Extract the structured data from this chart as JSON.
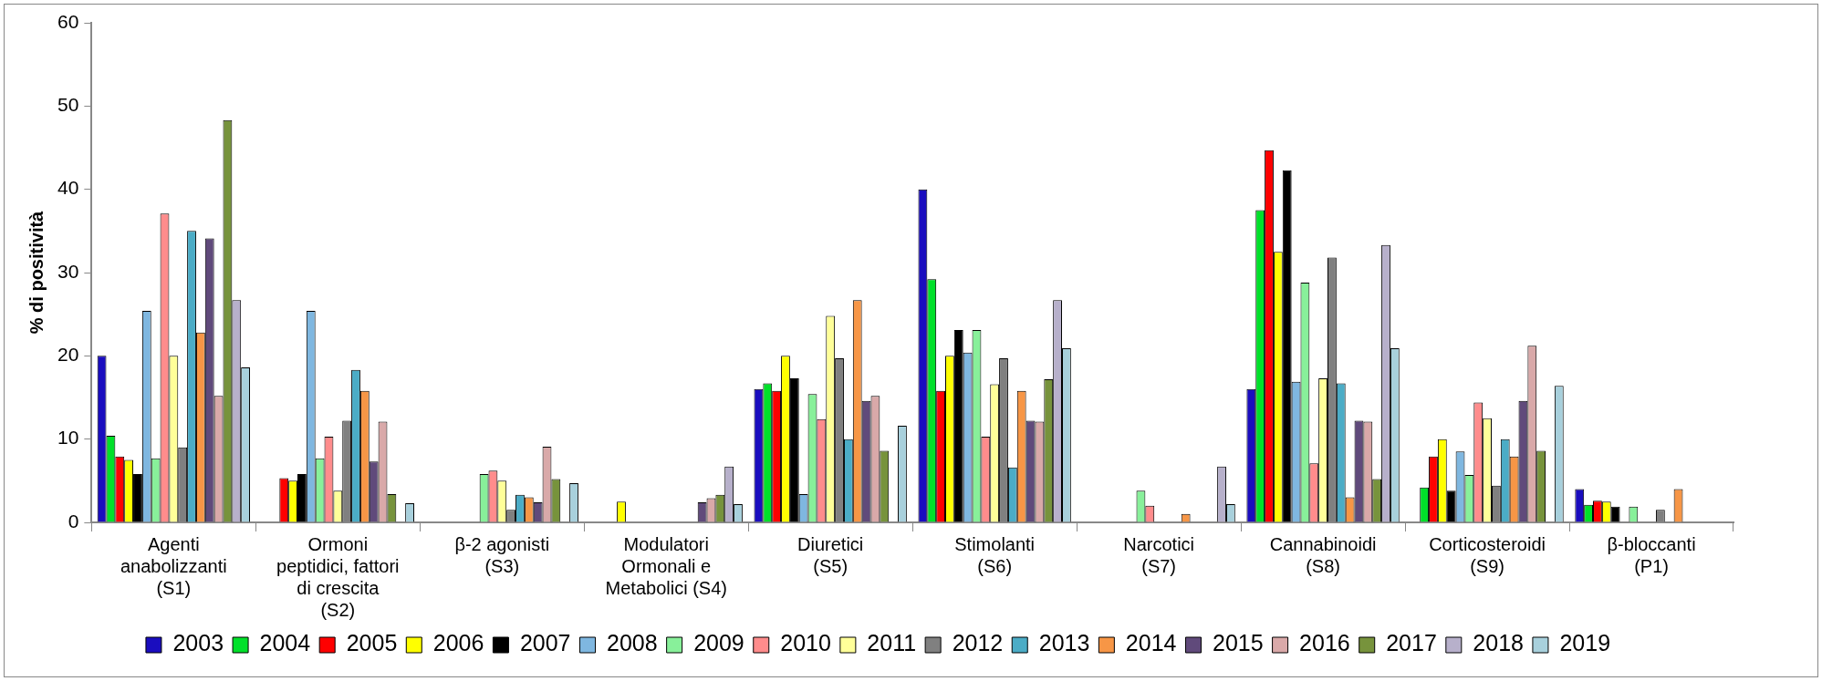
{
  "chart_data": {
    "type": "bar",
    "ylabel": "% di positività",
    "categories": [
      "Agenti\nanabolizzanti\n(S1)",
      "Ormoni\npeptidici, fattori\ndi crescita\n(S2)",
      "β-2 agonisti\n(S3)",
      "Modulatori\nOrmonali e\nMetabolici (S4)",
      "Diuretici\n(S5)",
      "Stimolanti\n(S6)",
      "Narcotici\n(S7)",
      "Cannabinoidi\n(S8)",
      "Corticosteroidi\n(S9)",
      "β-bloccanti\n(P1)"
    ],
    "ylim": [
      0,
      60
    ],
    "yticks": [
      0,
      10,
      20,
      30,
      40,
      50,
      60
    ],
    "grid": false,
    "legend": "bottom",
    "series": [
      {
        "name": "2003",
        "color": "#1a0dbf",
        "values": [
          20,
          null,
          null,
          null,
          16,
          40,
          null,
          16,
          null,
          4.0
        ]
      },
      {
        "name": "2004",
        "color": "#00e02a",
        "values": [
          10.4,
          null,
          null,
          null,
          16.7,
          29.2,
          null,
          37.5,
          4.2,
          2.1
        ]
      },
      {
        "name": "2005",
        "color": "#ff0000",
        "values": [
          7.9,
          5.3,
          null,
          null,
          15.8,
          15.8,
          null,
          44.7,
          7.9,
          2.6
        ]
      },
      {
        "name": "2006",
        "color": "#ffff00",
        "values": [
          7.5,
          5.0,
          null,
          2.5,
          20,
          20,
          null,
          32.5,
          10,
          2.5
        ]
      },
      {
        "name": "2007",
        "color": "#000000",
        "values": [
          5.8,
          5.8,
          null,
          null,
          17.3,
          23.1,
          null,
          42.3,
          3.8,
          1.9
        ]
      },
      {
        "name": "2008",
        "color": "#7fb7e0",
        "values": [
          25.4,
          25.4,
          null,
          null,
          3.4,
          20.4,
          null,
          16.9,
          8.5,
          null
        ]
      },
      {
        "name": "2009",
        "color": "#88f09a",
        "values": [
          7.7,
          7.7,
          5.8,
          null,
          15.4,
          23.1,
          3.8,
          28.8,
          5.7,
          1.9
        ]
      },
      {
        "name": "2010",
        "color": "#ff8c8c",
        "values": [
          37.1,
          10.3,
          6.2,
          null,
          12.4,
          10.3,
          2.0,
          7.1,
          14.4,
          null
        ]
      },
      {
        "name": "2011",
        "color": "#ffff99",
        "values": [
          20,
          3.8,
          5.0,
          null,
          24.8,
          16.6,
          null,
          17.3,
          12.5,
          null
        ]
      },
      {
        "name": "2012",
        "color": "#808080",
        "values": [
          9.0,
          12.2,
          1.5,
          null,
          19.7,
          19.7,
          null,
          31.8,
          4.4,
          1.5
        ]
      },
      {
        "name": "2013",
        "color": "#4bacc6",
        "values": [
          35,
          18.3,
          3.3,
          null,
          10,
          6.6,
          null,
          16.7,
          10,
          null
        ]
      },
      {
        "name": "2014",
        "color": "#f79646",
        "values": [
          22.8,
          15.8,
          3.0,
          null,
          26.7,
          15.8,
          1.0,
          3.0,
          7.9,
          4.0
        ]
      },
      {
        "name": "2015",
        "color": "#604a7b",
        "values": [
          34.1,
          7.3,
          2.4,
          2.4,
          14.6,
          12.2,
          null,
          12.2,
          14.6,
          null
        ]
      },
      {
        "name": "2016",
        "color": "#d9a9a9",
        "values": [
          15.2,
          12.1,
          9.1,
          2.9,
          15.2,
          12.1,
          null,
          12.1,
          21.2,
          null
        ]
      },
      {
        "name": "2017",
        "color": "#77933c",
        "values": [
          48.3,
          3.4,
          5.2,
          3.3,
          8.6,
          17.2,
          null,
          5.2,
          8.6,
          null
        ]
      },
      {
        "name": "2018",
        "color": "#b7b0cb",
        "values": [
          26.7,
          null,
          null,
          6.7,
          null,
          26.7,
          6.7,
          33.3,
          null,
          null
        ]
      },
      {
        "name": "2019",
        "color": "#a8d0dc",
        "values": [
          18.6,
          2.3,
          4.7,
          2.2,
          11.6,
          20.9,
          2.2,
          20.9,
          16.4,
          null
        ]
      }
    ]
  }
}
